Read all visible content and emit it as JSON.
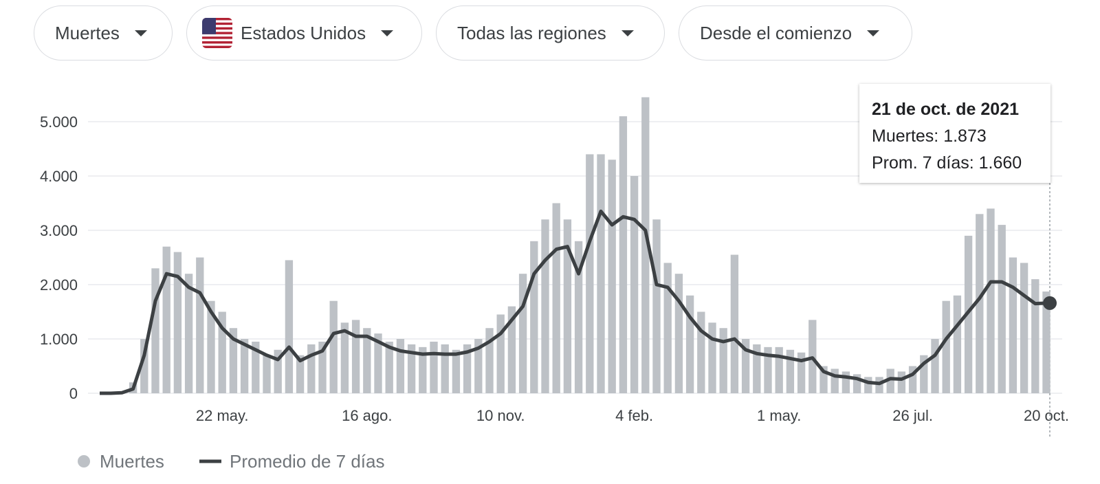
{
  "filters": [
    {
      "label": "Muertes"
    },
    {
      "label": "Estados Unidos"
    },
    {
      "label": "Todas las regiones"
    },
    {
      "label": "Desde el comienzo"
    }
  ],
  "chart_data": {
    "type": "bar",
    "categories": [
      null,
      null,
      null,
      null,
      null,
      null,
      null,
      null,
      null,
      null,
      null,
      "22 may.",
      null,
      null,
      null,
      null,
      null,
      null,
      null,
      null,
      null,
      null,
      null,
      null,
      "16 ago.",
      null,
      null,
      null,
      null,
      null,
      null,
      null,
      null,
      null,
      null,
      null,
      "10 nov.",
      null,
      null,
      null,
      null,
      null,
      null,
      null,
      null,
      null,
      null,
      null,
      "4 feb.",
      null,
      null,
      null,
      null,
      null,
      null,
      null,
      null,
      null,
      null,
      null,
      null,
      "1 may.",
      null,
      null,
      null,
      null,
      null,
      null,
      null,
      null,
      null,
      null,
      null,
      "26 jul.",
      null,
      null,
      null,
      null,
      null,
      null,
      null,
      null,
      null,
      null,
      null,
      "20 oct."
    ],
    "series": [
      {
        "name": "Muertes",
        "type": "bar",
        "color": "#bdc1c6",
        "values": [
          0,
          5,
          30,
          200,
          1000,
          2300,
          2700,
          2600,
          2200,
          2500,
          1700,
          1500,
          1200,
          1000,
          950,
          700,
          800,
          2450,
          700,
          900,
          950,
          1700,
          1300,
          1350,
          1200,
          1100,
          950,
          1000,
          900,
          850,
          950,
          900,
          800,
          900,
          1000,
          1200,
          1450,
          1600,
          2200,
          2800,
          3200,
          3500,
          3200,
          2800,
          4400,
          4400,
          4300,
          5100,
          4000,
          5450,
          3200,
          2400,
          2200,
          1800,
          1500,
          1300,
          1200,
          2550,
          1000,
          900,
          850,
          850,
          800,
          750,
          1350,
          500,
          450,
          400,
          350,
          300,
          300,
          450,
          400,
          500,
          700,
          1000,
          1700,
          1800,
          2900,
          3300,
          3400,
          3100,
          2500,
          2400,
          2100,
          1873
        ]
      },
      {
        "name": "Promedio de 7 días",
        "type": "line",
        "color": "#3c4043",
        "values": [
          0,
          0,
          10,
          80,
          700,
          1700,
          2200,
          2150,
          1950,
          1850,
          1500,
          1200,
          1000,
          900,
          800,
          700,
          620,
          850,
          600,
          700,
          780,
          1100,
          1150,
          1050,
          1050,
          950,
          850,
          780,
          750,
          720,
          730,
          720,
          720,
          760,
          830,
          950,
          1100,
          1350,
          1600,
          2200,
          2450,
          2650,
          2700,
          2200,
          2800,
          3350,
          3100,
          3250,
          3200,
          3000,
          2000,
          1950,
          1700,
          1400,
          1150,
          1000,
          950,
          1000,
          800,
          730,
          700,
          680,
          640,
          600,
          650,
          400,
          320,
          300,
          270,
          200,
          180,
          270,
          260,
          350,
          550,
          700,
          1000,
          1250,
          1500,
          1750,
          2050,
          2050,
          1950,
          1800,
          1650,
          1660
        ]
      }
    ],
    "ylim": [
      0,
      5500
    ],
    "yticks": [
      0,
      {
        "value": 1000,
        "label": "1.000"
      },
      {
        "value": 2000,
        "label": "2.000"
      },
      {
        "value": 3000,
        "label": "3.000"
      },
      {
        "value": 4000,
        "label": "4.000"
      },
      {
        "value": 5000,
        "label": "5.000"
      }
    ],
    "grid": true,
    "tooltip": {
      "title": "21 de oct. de 2021",
      "lines": [
        "Muertes: 1.873",
        "Prom. 7 días: 1.660"
      ]
    }
  }
}
